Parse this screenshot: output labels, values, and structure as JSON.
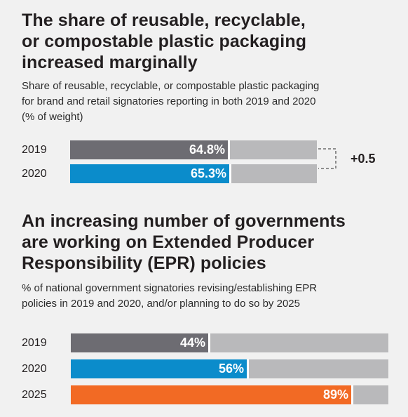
{
  "chart_data": [
    {
      "type": "bar",
      "title": "The share of reusable, recyclable, or compostable plastic packaging increased marginally",
      "title_lines": [
        "The share of reusable, recyclable,",
        "or compostable plastic packaging",
        "increased marginally"
      ],
      "subtitle_lines": [
        "Share of reusable, recyclable, or compostable plastic packaging",
        "for brand and retail signatories reporting in both 2019 and 2020",
        "(% of weight)"
      ],
      "categories": [
        "2019",
        "2020"
      ],
      "values": [
        64.8,
        65.3
      ],
      "value_labels": [
        "64.8%",
        "65.3%"
      ],
      "bar_colors": [
        "#6d6c72",
        "#0b8ccb"
      ],
      "track_color": "#b9b9bb",
      "ylim": [
        0,
        100
      ],
      "annotation": "+0.5"
    },
    {
      "type": "bar",
      "title": "An increasing number of governments are working on Extended Producer Responsibility (EPR) policies",
      "title_lines": [
        "An increasing number of governments",
        "are working on Extended Producer",
        "Responsibility (EPR) policies"
      ],
      "subtitle_lines": [
        "% of national government signatories revising/establishing EPR",
        "policies in 2019 and 2020, and/or planning to do so by 2025"
      ],
      "categories": [
        "2019",
        "2020",
        "2025"
      ],
      "values": [
        44,
        56,
        89
      ],
      "value_labels": [
        "44%",
        "56%",
        "89%"
      ],
      "bar_colors": [
        "#6d6c72",
        "#0b8ccb",
        "#f26a24"
      ],
      "track_color": "#b9b9bb",
      "ylim": [
        0,
        100
      ]
    }
  ]
}
